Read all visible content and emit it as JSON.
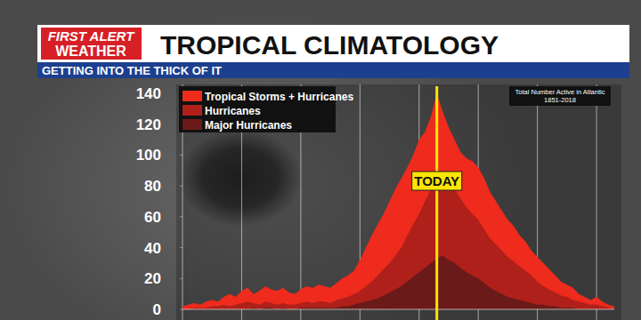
{
  "brand": [
    "FIRST ALERT",
    "WEATHER"
  ],
  "chart_data": {
    "type": "area",
    "title": "TROPICAL CLIMATOLOGY",
    "subtitle": "GETTING INTO THE THICK OF IT",
    "note": [
      "Total Number Active in Atlantic",
      "1851-2018"
    ],
    "today": {
      "x": 43,
      "label": "TODAY"
    },
    "x": [
      0,
      1,
      2,
      3,
      4,
      5,
      6,
      7,
      8,
      9,
      10,
      11,
      12,
      13,
      14,
      15,
      16,
      17,
      18,
      19,
      20,
      21,
      22,
      23,
      24,
      25,
      26,
      27,
      28,
      29,
      30,
      31,
      32,
      33,
      34,
      35,
      36,
      37,
      38,
      39,
      40,
      41,
      42,
      43,
      44,
      45,
      46,
      47,
      48,
      49,
      50,
      51,
      52,
      53,
      54,
      55,
      56,
      57,
      58,
      59,
      60,
      61,
      62,
      63,
      64,
      65,
      66,
      67,
      68,
      69,
      70,
      71,
      72,
      73
    ],
    "series": [
      {
        "name": "Tropical Storms + Hurricanes",
        "color": "#ee2b1c",
        "values": [
          2,
          3,
          4,
          3,
          5,
          6,
          5,
          8,
          10,
          8,
          12,
          14,
          10,
          12,
          15,
          13,
          12,
          14,
          11,
          10,
          13,
          15,
          14,
          16,
          15,
          14,
          17,
          20,
          22,
          25,
          32,
          40,
          48,
          55,
          62,
          70,
          78,
          85,
          92,
          100,
          110,
          115,
          125,
          140,
          128,
          118,
          110,
          102,
          98,
          96,
          92,
          85,
          76,
          70,
          64,
          58,
          54,
          48,
          44,
          38,
          34,
          30,
          26,
          22,
          18,
          16,
          14,
          10,
          8,
          6,
          8,
          5,
          3,
          2
        ]
      },
      {
        "name": "Hurricanes",
        "color": "#b0201a",
        "values": [
          0,
          0,
          1,
          1,
          1,
          2,
          2,
          3,
          2,
          3,
          4,
          5,
          4,
          3,
          5,
          4,
          3,
          4,
          3,
          3,
          4,
          5,
          4,
          5,
          5,
          4,
          6,
          7,
          8,
          10,
          12,
          15,
          18,
          22,
          26,
          30,
          35,
          40,
          48,
          55,
          62,
          70,
          78,
          85,
          90,
          84,
          78,
          72,
          66,
          62,
          58,
          52,
          46,
          42,
          38,
          34,
          31,
          28,
          25,
          22,
          18,
          15,
          13,
          11,
          9,
          8,
          6,
          5,
          4,
          3,
          3,
          2,
          1,
          0
        ]
      },
      {
        "name": "Major Hurricanes",
        "color": "#6a1a18",
        "values": [
          0,
          0,
          0,
          0,
          0,
          0,
          0,
          0,
          0,
          0,
          0,
          0,
          1,
          0,
          1,
          1,
          0,
          1,
          0,
          0,
          1,
          1,
          1,
          1,
          1,
          1,
          1,
          2,
          2,
          3,
          4,
          5,
          6,
          7,
          9,
          11,
          13,
          15,
          18,
          21,
          24,
          27,
          30,
          33,
          35,
          32,
          30,
          27,
          24,
          22,
          20,
          17,
          14,
          12,
          10,
          8,
          7,
          6,
          5,
          4,
          3,
          3,
          2,
          2,
          1,
          1,
          1,
          0,
          0,
          0,
          0,
          0,
          0,
          0
        ]
      }
    ],
    "xlim": [
      0,
      73
    ],
    "xticks": [
      0,
      10,
      20,
      30,
      40,
      50,
      60,
      70
    ],
    "ylim": [
      0,
      140
    ],
    "yticks": [
      0,
      20,
      40,
      60,
      80,
      100,
      120,
      140
    ],
    "grid": true,
    "stacked": false,
    "legend": "top-left",
    "tick_labels": "y"
  }
}
